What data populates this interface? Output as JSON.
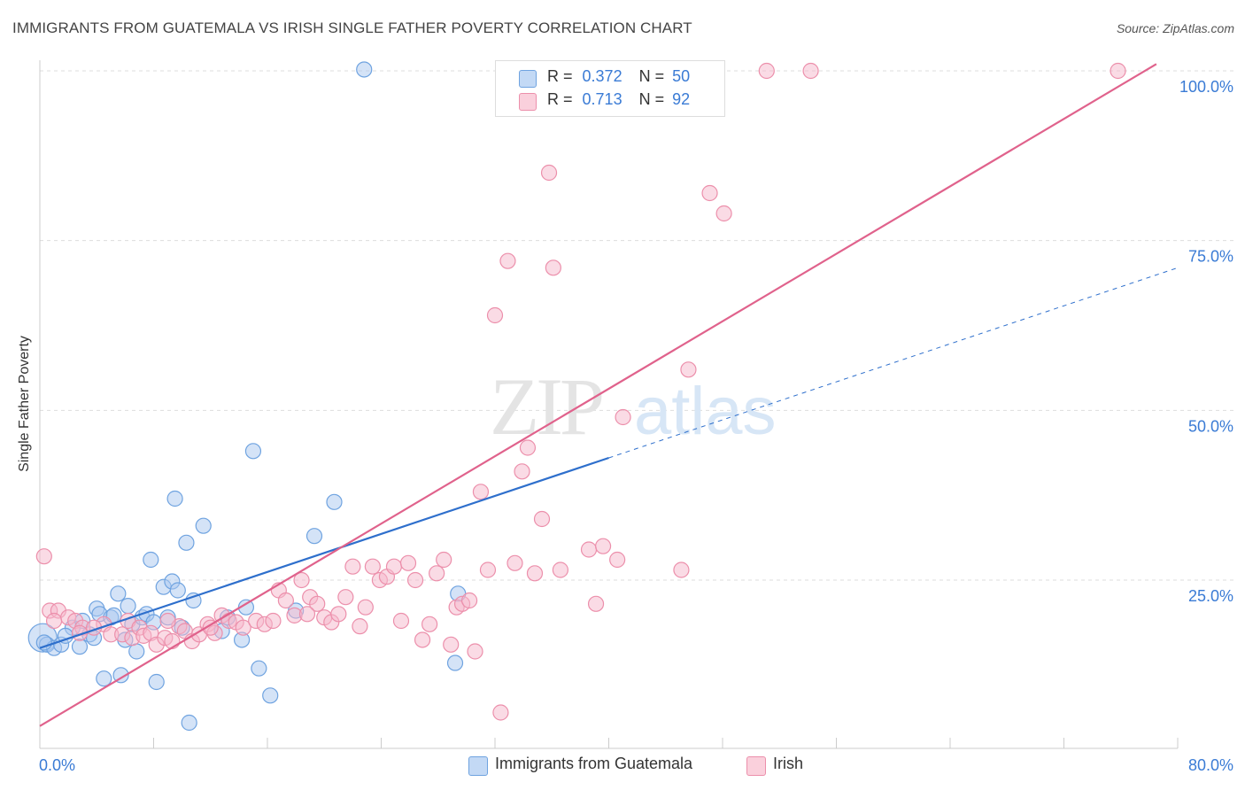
{
  "title": "IMMIGRANTS FROM GUATEMALA VS IRISH SINGLE FATHER POVERTY CORRELATION CHART",
  "source": "Source: ZipAtlas.com",
  "watermark": {
    "part1": "ZIP",
    "part2": "atlas"
  },
  "legend": {
    "rows": [
      {
        "r_label": "R =",
        "r_value": "0.372",
        "n_label": "N =",
        "n_value": "50",
        "color": "#a9c8f0"
      },
      {
        "r_label": "R =",
        "r_value": "0.713",
        "n_label": "N =",
        "n_value": "92",
        "color": "#f6b8cb"
      }
    ]
  },
  "chart_data": {
    "type": "scatter",
    "title": "IMMIGRANTS FROM GUATEMALA VS IRISH SINGLE FATHER POVERTY CORRELATION CHART",
    "xlabel": "",
    "ylabel": "Single Father Poverty",
    "xlim": [
      0,
      80
    ],
    "ylim": [
      0,
      103
    ],
    "x_tick_labels": [
      "0.0%",
      "80.0%"
    ],
    "y_tick_labels": [
      "25.0%",
      "50.0%",
      "75.0%",
      "100.0%"
    ],
    "y_ticks": [
      25,
      50,
      75,
      100
    ],
    "grid": true,
    "legend_position": "bottom",
    "series": [
      {
        "name": "Immigrants from Guatemala",
        "color": "#6fa3e0",
        "fill": "#a9c8f0",
        "trend": {
          "x0": 0,
          "y0": 15.0,
          "x1": 40,
          "y1": 43.0,
          "dashed_to_x": 80,
          "dashed_to_y": 71.0,
          "color": "#2e6fcc"
        },
        "points": [
          [
            0.2,
            16.5
          ],
          [
            0.5,
            15.5
          ],
          [
            1.0,
            15.0
          ],
          [
            1.5,
            15.5
          ],
          [
            2.3,
            18.0
          ],
          [
            3.0,
            19.0
          ],
          [
            2.8,
            15.2
          ],
          [
            3.5,
            17.0
          ],
          [
            3.8,
            16.5
          ],
          [
            4.0,
            20.8
          ],
          [
            4.5,
            10.5
          ],
          [
            4.2,
            20.0
          ],
          [
            5.0,
            19.5
          ],
          [
            5.2,
            19.8
          ],
          [
            5.5,
            23.0
          ],
          [
            5.7,
            11.0
          ],
          [
            6.0,
            16.2
          ],
          [
            6.2,
            21.2
          ],
          [
            6.5,
            18.5
          ],
          [
            6.8,
            14.5
          ],
          [
            7.2,
            19.5
          ],
          [
            7.5,
            20.0
          ],
          [
            7.8,
            28.0
          ],
          [
            8.0,
            18.8
          ],
          [
            8.2,
            10.0
          ],
          [
            8.7,
            24.0
          ],
          [
            9.0,
            19.5
          ],
          [
            9.3,
            24.8
          ],
          [
            9.5,
            37.0
          ],
          [
            9.7,
            23.5
          ],
          [
            10.0,
            18.0
          ],
          [
            10.3,
            30.5
          ],
          [
            10.5,
            4.0
          ],
          [
            10.8,
            22.0
          ],
          [
            11.5,
            33.0
          ],
          [
            12.8,
            17.5
          ],
          [
            13.2,
            19.5
          ],
          [
            14.2,
            16.2
          ],
          [
            14.5,
            21.0
          ],
          [
            15.0,
            44.0
          ],
          [
            15.4,
            12.0
          ],
          [
            16.2,
            8.0
          ],
          [
            18.0,
            20.5
          ],
          [
            19.3,
            31.5
          ],
          [
            20.7,
            36.5
          ],
          [
            22.8,
            100.2
          ],
          [
            29.2,
            12.8
          ],
          [
            29.4,
            23.0
          ],
          [
            0.3,
            15.8
          ],
          [
            1.8,
            16.8
          ]
        ]
      },
      {
        "name": "Irish",
        "color": "#ec8fab",
        "fill": "#f6b8cb",
        "trend": {
          "x0": 0,
          "y0": 3.5,
          "x1": 78.5,
          "y1": 101.0,
          "color": "#e0628c"
        },
        "points": [
          [
            0.3,
            28.5
          ],
          [
            0.7,
            20.5
          ],
          [
            1.3,
            20.5
          ],
          [
            2.0,
            19.5
          ],
          [
            2.5,
            19.0
          ],
          [
            3.0,
            18.0
          ],
          [
            4.5,
            18.5
          ],
          [
            5.0,
            17.0
          ],
          [
            5.8,
            17.0
          ],
          [
            6.2,
            19.0
          ],
          [
            6.5,
            16.5
          ],
          [
            7.0,
            18.0
          ],
          [
            7.3,
            16.8
          ],
          [
            7.8,
            17.2
          ],
          [
            8.2,
            15.5
          ],
          [
            8.8,
            16.5
          ],
          [
            9.3,
            16.0
          ],
          [
            9.8,
            18.2
          ],
          [
            10.2,
            17.5
          ],
          [
            10.7,
            16.0
          ],
          [
            11.2,
            17.0
          ],
          [
            11.8,
            18.5
          ],
          [
            12.3,
            17.2
          ],
          [
            12.8,
            19.8
          ],
          [
            13.3,
            19.0
          ],
          [
            13.8,
            18.8
          ],
          [
            14.3,
            18.0
          ],
          [
            15.2,
            19.0
          ],
          [
            15.8,
            18.5
          ],
          [
            16.4,
            19.0
          ],
          [
            16.8,
            23.5
          ],
          [
            17.3,
            22.0
          ],
          [
            17.9,
            19.8
          ],
          [
            18.4,
            25.0
          ],
          [
            19.0,
            22.5
          ],
          [
            19.5,
            21.5
          ],
          [
            20.0,
            19.5
          ],
          [
            20.5,
            18.8
          ],
          [
            21.0,
            20.0
          ],
          [
            21.5,
            22.5
          ],
          [
            22.0,
            27.0
          ],
          [
            22.5,
            18.2
          ],
          [
            22.9,
            21.0
          ],
          [
            23.4,
            27.0
          ],
          [
            23.9,
            25.0
          ],
          [
            24.4,
            25.5
          ],
          [
            24.9,
            27.0
          ],
          [
            25.4,
            19.0
          ],
          [
            25.9,
            27.5
          ],
          [
            26.4,
            25.0
          ],
          [
            26.9,
            16.2
          ],
          [
            27.4,
            18.5
          ],
          [
            27.9,
            26.0
          ],
          [
            28.4,
            28.0
          ],
          [
            28.9,
            15.5
          ],
          [
            29.3,
            21.0
          ],
          [
            29.7,
            21.5
          ],
          [
            30.2,
            22.0
          ],
          [
            30.6,
            14.5
          ],
          [
            31.0,
            38.0
          ],
          [
            31.5,
            26.5
          ],
          [
            32.0,
            64.0
          ],
          [
            32.4,
            5.5
          ],
          [
            32.9,
            72.0
          ],
          [
            33.4,
            27.5
          ],
          [
            33.9,
            41.0
          ],
          [
            34.3,
            44.5
          ],
          [
            34.8,
            26.0
          ],
          [
            35.3,
            34.0
          ],
          [
            35.8,
            85.0
          ],
          [
            36.1,
            71.0
          ],
          [
            36.6,
            26.5
          ],
          [
            37.1,
            100.0
          ],
          [
            38.6,
            29.5
          ],
          [
            39.1,
            21.5
          ],
          [
            39.6,
            30.0
          ],
          [
            40.6,
            28.0
          ],
          [
            41.0,
            49.0
          ],
          [
            42.6,
            100.0
          ],
          [
            45.1,
            26.5
          ],
          [
            45.6,
            56.0
          ],
          [
            47.1,
            82.0
          ],
          [
            48.1,
            79.0
          ],
          [
            51.1,
            100.0
          ],
          [
            54.2,
            100.0
          ],
          [
            75.8,
            100.0
          ],
          [
            2.8,
            17.2
          ],
          [
            3.8,
            18.0
          ],
          [
            1.0,
            19.0
          ],
          [
            9.0,
            19.0
          ],
          [
            12.0,
            18.0
          ],
          [
            18.8,
            20.0
          ]
        ]
      }
    ]
  },
  "bottom_legend": {
    "items": [
      {
        "label": "Immigrants from Guatemala",
        "color": "#a9c8f0",
        "border": "#6fa3e0"
      },
      {
        "label": "Irish",
        "color": "#f6b8cb",
        "border": "#ec8fab"
      }
    ]
  }
}
